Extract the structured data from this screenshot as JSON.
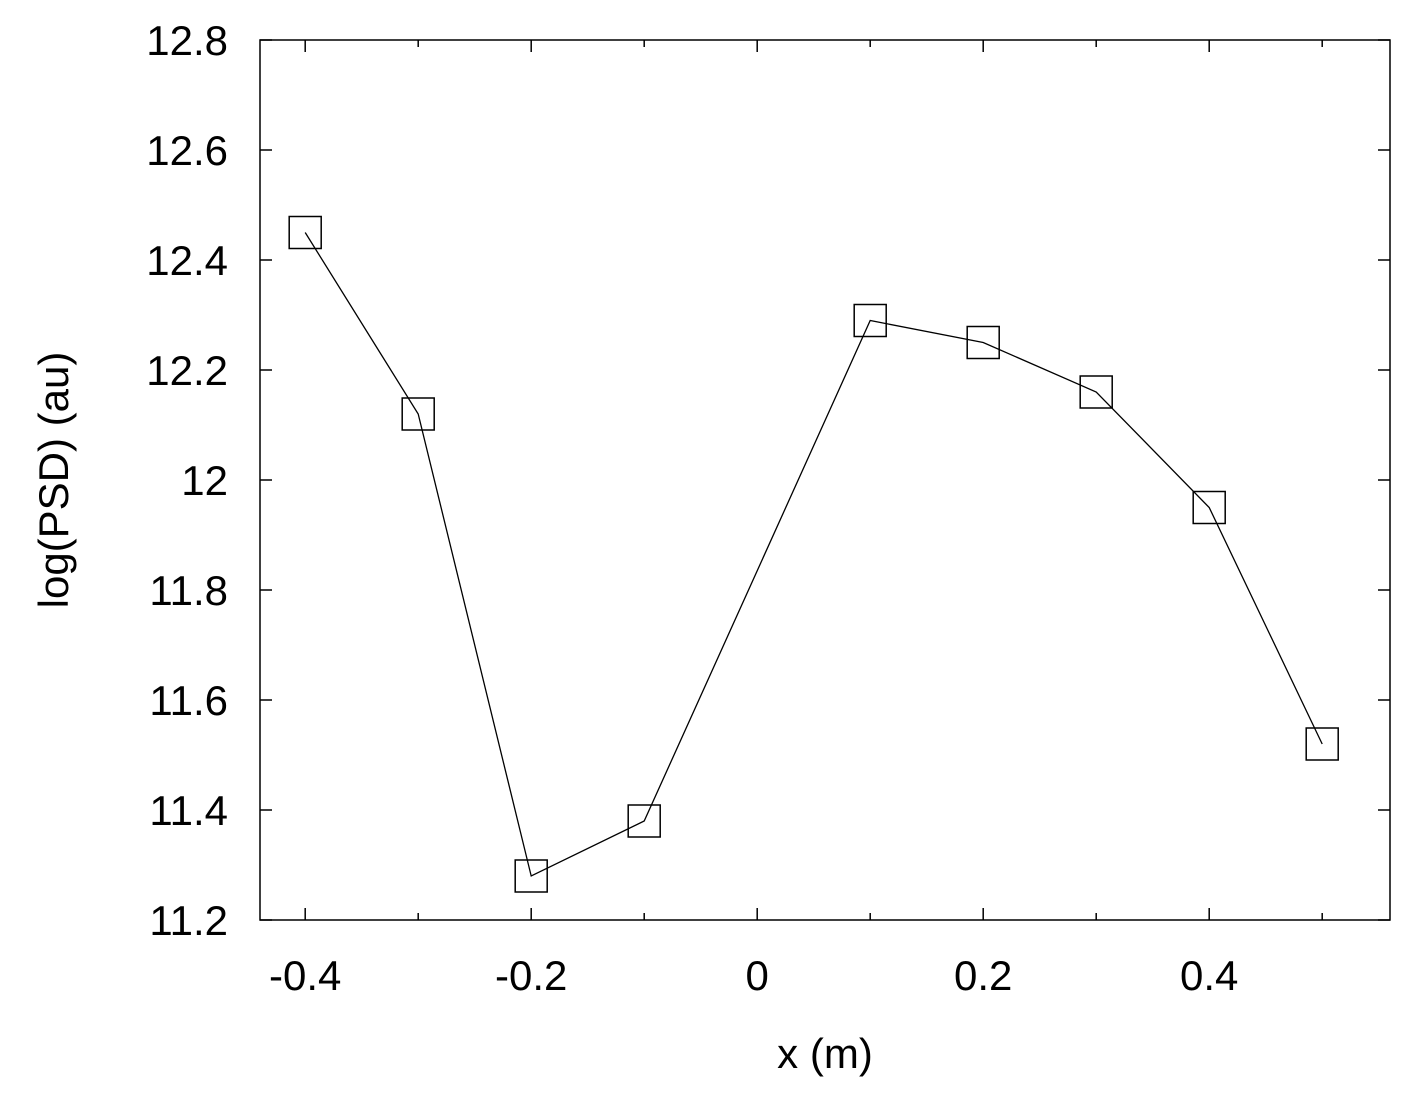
{
  "chart_data": {
    "type": "line",
    "title": "",
    "xlabel": "x (m)",
    "ylabel": "log(PSD) (au)",
    "xlim": [
      -0.44,
      0.56
    ],
    "ylim": [
      11.2,
      12.8
    ],
    "x_ticks": [
      -0.4,
      -0.2,
      0,
      0.2,
      0.4
    ],
    "x_tick_labels": [
      "-0.4",
      "-0.2",
      "0",
      "0.2",
      "0.4"
    ],
    "x_minor_ticks": [
      -0.3,
      -0.1,
      0.1,
      0.3,
      0.5
    ],
    "y_ticks": [
      11.2,
      11.4,
      11.6,
      11.8,
      12.0,
      12.2,
      12.4,
      12.6,
      12.8
    ],
    "y_tick_labels": [
      "11.2",
      "11.4",
      "11.6",
      "11.8",
      "12",
      "12.2",
      "12.4",
      "12.6",
      "12.8"
    ],
    "grid": false,
    "legend": "none",
    "series": [
      {
        "marker": "open-square",
        "line_color": "#000000",
        "x": [
          -0.4,
          -0.3,
          -0.2,
          -0.1,
          0.1,
          0.2,
          0.3,
          0.4,
          0.5
        ],
        "values": [
          12.45,
          12.12,
          11.28,
          11.38,
          12.29,
          12.25,
          12.16,
          11.95,
          11.52
        ]
      }
    ]
  }
}
